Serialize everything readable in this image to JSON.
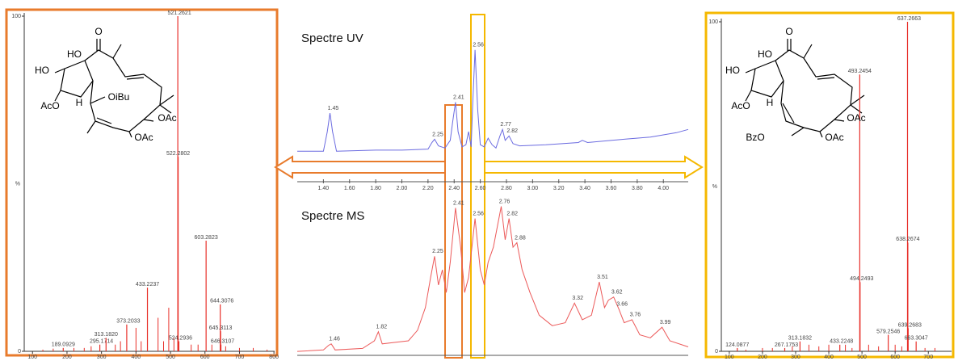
{
  "chart_data": [
    {
      "type": "stem",
      "color": "#e8302a",
      "x": [
        189.0929,
        295.1714,
        313.182,
        373.2033,
        433.2237,
        521.2621,
        522.2802,
        524.2936,
        603.2823,
        644.3076,
        645.3113,
        646.3107
      ],
      "x_labels": [
        "189.0929",
        "295.1714",
        "313.1820",
        "373.2033",
        "433.2237",
        "521.2621",
        "522.2802",
        "524.2936",
        "603.2823",
        "644.3076",
        "645.3113",
        "646.3107"
      ],
      "values": [
        1,
        2,
        4,
        8,
        19,
        100,
        58,
        3,
        33,
        14,
        6,
        2
      ],
      "x_minor": [
        130,
        160,
        220,
        250,
        270,
        340,
        355,
        400,
        415,
        464,
        480,
        495,
        510,
        560,
        580,
        620,
        660,
        700,
        740,
        780
      ],
      "values_minor": [
        0.5,
        0.8,
        1,
        1,
        1.5,
        2,
        3,
        7,
        3,
        10,
        3,
        13,
        4,
        2,
        2,
        2,
        1.5,
        1,
        1,
        0.5
      ],
      "xlim": [
        76,
        802
      ],
      "xticks": [
        100,
        200,
        300,
        400,
        500,
        600,
        700,
        800
      ],
      "ylim": [
        0,
        100
      ],
      "yticks": [
        0,
        100
      ],
      "ylabel": "%"
    },
    {
      "type": "line",
      "title": "Spectre UV",
      "color": "#6b6be0",
      "x": [
        1.2,
        1.4,
        1.43,
        1.45,
        1.47,
        1.5,
        1.8,
        2.0,
        2.2,
        2.23,
        2.25,
        2.28,
        2.33,
        2.37,
        2.39,
        2.41,
        2.43,
        2.46,
        2.49,
        2.51,
        2.53,
        2.54,
        2.56,
        2.58,
        2.6,
        2.63,
        2.66,
        2.69,
        2.72,
        2.75,
        2.77,
        2.79,
        2.82,
        2.85,
        2.9,
        3.1,
        3.35,
        3.38,
        3.42,
        3.7,
        3.9,
        4.1,
        4.19
      ],
      "values": [
        2,
        2,
        20,
        37,
        20,
        2,
        3,
        3,
        4,
        10,
        13,
        7,
        5,
        12,
        30,
        47,
        20,
        6,
        8,
        20,
        6,
        40,
        95,
        40,
        8,
        6,
        14,
        8,
        5,
        16,
        22,
        12,
        16,
        9,
        7,
        8,
        10,
        12,
        10,
        13,
        15,
        19,
        22
      ],
      "point_labels": [
        null,
        null,
        null,
        "1.45",
        null,
        null,
        null,
        null,
        null,
        null,
        "2.25",
        null,
        null,
        null,
        null,
        "2.41",
        null,
        null,
        null,
        null,
        null,
        null,
        "2.56",
        null,
        null,
        null,
        null,
        null,
        null,
        null,
        "2.77",
        null,
        "2.82",
        null,
        null,
        null,
        null,
        null,
        null,
        null,
        null,
        null,
        null
      ],
      "xlim": [
        1.2,
        4.19
      ],
      "ylim": [
        0,
        100
      ],
      "xticks": [
        {
          "value": 1.4,
          "label": "1.40"
        },
        {
          "value": 1.6,
          "label": "1.60"
        },
        {
          "value": 1.8,
          "label": "1.80"
        },
        {
          "value": 2.0,
          "label": "2.00"
        },
        {
          "value": 2.2,
          "label": "2.20"
        },
        {
          "value": 2.4,
          "label": "2.40"
        },
        {
          "value": 2.6,
          "label": "2.60"
        },
        {
          "value": 2.8,
          "label": "2.80"
        },
        {
          "value": 3.0,
          "label": "3.00"
        },
        {
          "value": 3.2,
          "label": "3.20"
        },
        {
          "value": 3.4,
          "label": "3.40"
        },
        {
          "value": 3.6,
          "label": "3.60"
        },
        {
          "value": 3.8,
          "label": "3.80"
        },
        {
          "value": 4.0,
          "label": "4.00"
        }
      ]
    },
    {
      "type": "line",
      "title": "Spectre MS",
      "color": "#ec5a5a",
      "x": [
        1.2,
        1.4,
        1.44,
        1.46,
        1.49,
        1.7,
        1.79,
        1.82,
        1.85,
        1.95,
        2.05,
        2.12,
        2.18,
        2.22,
        2.25,
        2.28,
        2.31,
        2.34,
        2.37,
        2.41,
        2.45,
        2.48,
        2.51,
        2.56,
        2.6,
        2.63,
        2.66,
        2.7,
        2.76,
        2.79,
        2.82,
        2.85,
        2.88,
        2.92,
        2.98,
        3.05,
        3.15,
        3.25,
        3.32,
        3.38,
        3.45,
        3.51,
        3.55,
        3.58,
        3.62,
        3.66,
        3.7,
        3.76,
        3.82,
        3.9,
        3.99,
        4.05,
        4.19
      ],
      "values": [
        1,
        2,
        5,
        6,
        2,
        3,
        8,
        14,
        6,
        7,
        8,
        15,
        30,
        50,
        64,
        45,
        55,
        40,
        60,
        96,
        70,
        40,
        50,
        89,
        55,
        45,
        60,
        70,
        97,
        75,
        89,
        70,
        73,
        55,
        40,
        25,
        18,
        20,
        33,
        22,
        25,
        47,
        30,
        35,
        37,
        29,
        20,
        22,
        12,
        10,
        17,
        8,
        4
      ],
      "point_labels": [
        null,
        null,
        null,
        "1.46",
        null,
        null,
        null,
        "1.82",
        null,
        null,
        null,
        null,
        null,
        null,
        "2.25",
        null,
        null,
        null,
        null,
        "2.41",
        null,
        null,
        null,
        "2.56",
        null,
        null,
        null,
        null,
        "2.76",
        null,
        "2.82",
        null,
        "2.88",
        null,
        null,
        null,
        null,
        null,
        "3.32",
        null,
        null,
        "3.51",
        null,
        null,
        "3.62",
        "3.66",
        null,
        "3.76",
        null,
        null,
        "3.99",
        null,
        null
      ],
      "xlim": [
        1.2,
        4.19
      ],
      "ylim": [
        0,
        100
      ]
    },
    {
      "type": "stem",
      "color": "#e8302a",
      "x": [
        124.0877,
        267.1753,
        313.1832,
        433.2248,
        493.2454,
        494.2493,
        579.2546,
        637.2663,
        638.2674,
        639.2683,
        663.3047
      ],
      "x_labels": [
        "124.0877",
        "267.1753",
        "313.1832",
        "433.2248",
        "493.2454",
        "494.2493",
        "579.2546",
        "637.2663",
        "638.2674",
        "639.2683",
        "663.3047"
      ],
      "values": [
        1,
        1,
        3,
        2,
        84,
        21,
        5,
        100,
        33,
        7,
        3
      ],
      "x_minor": [
        150,
        200,
        230,
        290,
        340,
        370,
        400,
        450,
        470,
        520,
        550,
        600,
        620,
        690,
        720
      ],
      "values_minor": [
        0.5,
        1,
        1,
        1.5,
        2,
        1.5,
        2,
        2,
        1,
        2,
        1.5,
        2,
        1.5,
        1,
        1
      ],
      "xlim": [
        76,
        770
      ],
      "xticks": [
        100,
        200,
        300,
        400,
        500,
        600,
        700
      ],
      "ylim": [
        0,
        100
      ],
      "yticks": [
        0,
        100
      ],
      "ylabel": "%"
    }
  ],
  "structures": [
    {
      "labels": [
        "O",
        "HO",
        "HO",
        "OiBu",
        "H",
        "AcO",
        "OAc",
        "OAc"
      ]
    },
    {
      "labels": [
        "O",
        "HO",
        "HO",
        "H",
        "AcO",
        "OAc",
        "BzO",
        "OAc"
      ]
    }
  ]
}
